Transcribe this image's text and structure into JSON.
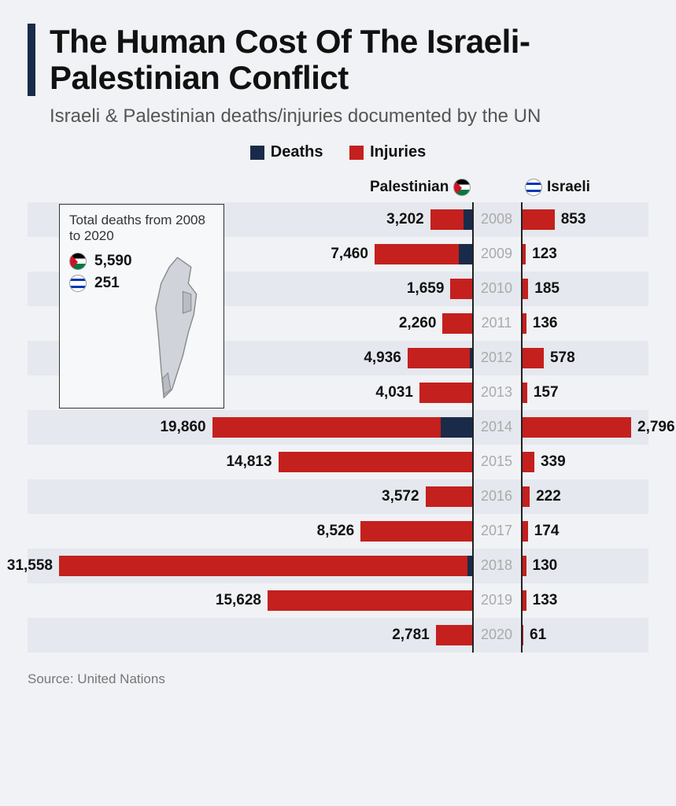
{
  "title": "The Human Cost Of The Israeli-Palestinian Conflict",
  "subtitle": "Israeli & Palestinian deaths/injuries documented by the UN",
  "legend": {
    "deaths_label": "Deaths",
    "injuries_label": "Injuries",
    "deaths_color": "#1a2b4a",
    "injuries_color": "#c4201e"
  },
  "columns": {
    "left_label": "Palestinian",
    "right_label": "Israeli"
  },
  "map_box": {
    "title": "Total deaths from 2008 to 2020",
    "pal_total": "5,590",
    "isr_total": "251"
  },
  "chart": {
    "type": "diverging-bar",
    "pal_max_value": 31558,
    "isr_max_value": 2796,
    "pal_death_fracs": {
      "2008": 0.2,
      "2009": 0.14,
      "2010": 0.0,
      "2011": 0.0,
      "2012": 0.04,
      "2013": 0.0,
      "2014": 0.12,
      "2015": 0.0,
      "2016": 0.0,
      "2017": 0.0,
      "2018": 0.012,
      "2019": 0.0,
      "2020": 0.0
    },
    "rows": [
      {
        "year": "2008",
        "pal": 3202,
        "pal_label": "3,202",
        "isr": 853,
        "isr_label": "853"
      },
      {
        "year": "2009",
        "pal": 7460,
        "pal_label": "7,460",
        "isr": 123,
        "isr_label": "123"
      },
      {
        "year": "2010",
        "pal": 1659,
        "pal_label": "1,659",
        "isr": 185,
        "isr_label": "185"
      },
      {
        "year": "2011",
        "pal": 2260,
        "pal_label": "2,260",
        "isr": 136,
        "isr_label": "136"
      },
      {
        "year": "2012",
        "pal": 4936,
        "pal_label": "4,936",
        "isr": 578,
        "isr_label": "578"
      },
      {
        "year": "2013",
        "pal": 4031,
        "pal_label": "4,031",
        "isr": 157,
        "isr_label": "157"
      },
      {
        "year": "2014",
        "pal": 19860,
        "pal_label": "19,860",
        "isr": 2796,
        "isr_label": "2,796"
      },
      {
        "year": "2015",
        "pal": 14813,
        "pal_label": "14,813",
        "isr": 339,
        "isr_label": "339"
      },
      {
        "year": "2016",
        "pal": 3572,
        "pal_label": "3,572",
        "isr": 222,
        "isr_label": "222"
      },
      {
        "year": "2017",
        "pal": 8526,
        "pal_label": "8,526",
        "isr": 174,
        "isr_label": "174"
      },
      {
        "year": "2018",
        "pal": 31558,
        "pal_label": "31,558",
        "isr": 130,
        "isr_label": "130"
      },
      {
        "year": "2019",
        "pal": 15628,
        "pal_label": "15,628",
        "isr": 133,
        "isr_label": "133"
      },
      {
        "year": "2020",
        "pal": 2781,
        "pal_label": "2,781",
        "isr": 61,
        "isr_label": "61"
      }
    ],
    "row_colors": [
      "#e5e8ee",
      "#f0f2f5"
    ],
    "year_color": "#aaaaaa",
    "label_color": "#111111",
    "label_fontsize": 19,
    "year_fontsize": 18
  },
  "source": "Source: United Nations",
  "background_color": "#f0f2f5"
}
